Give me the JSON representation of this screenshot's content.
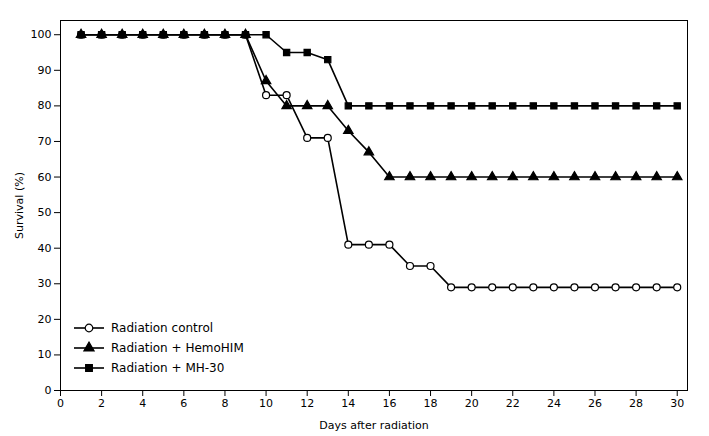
{
  "chart_data": {
    "type": "line",
    "xlabel": "Days after radiation",
    "ylabel": "Survival (%)",
    "x": [
      1,
      2,
      3,
      4,
      5,
      6,
      7,
      8,
      9,
      10,
      11,
      12,
      13,
      14,
      15,
      16,
      17,
      18,
      19,
      20,
      21,
      22,
      23,
      24,
      25,
      26,
      27,
      28,
      29,
      30
    ],
    "series": [
      {
        "name": "Radiation control",
        "color": "black",
        "marker": "open-circle",
        "values": [
          100,
          100,
          100,
          100,
          100,
          100,
          100,
          100,
          100,
          83,
          83,
          71,
          71,
          41,
          41,
          41,
          35,
          35,
          29,
          29,
          29,
          29,
          29,
          29,
          29,
          29,
          29,
          29,
          29,
          29
        ]
      },
      {
        "name": "Radiation + HemoHIM",
        "color": "black",
        "marker": "triangle",
        "values": [
          100,
          100,
          100,
          100,
          100,
          100,
          100,
          100,
          100,
          87,
          80,
          80,
          80,
          73,
          67,
          60,
          60,
          60,
          60,
          60,
          60,
          60,
          60,
          60,
          60,
          60,
          60,
          60,
          60,
          60
        ]
      },
      {
        "name": "Radiation + MH-30",
        "color": "black",
        "marker": "square",
        "values": [
          100,
          100,
          100,
          100,
          100,
          100,
          100,
          100,
          100,
          100,
          95,
          95,
          93,
          80,
          80,
          80,
          80,
          80,
          80,
          80,
          80,
          80,
          80,
          80,
          80,
          80,
          80,
          80,
          80,
          80
        ]
      }
    ],
    "xlim": [
      0,
      30.5
    ],
    "ylim": [
      0,
      104
    ],
    "xticks": [
      0,
      2,
      4,
      6,
      8,
      10,
      12,
      14,
      16,
      18,
      20,
      22,
      24,
      26,
      28,
      30
    ],
    "yticks": [
      0,
      10,
      20,
      30,
      40,
      50,
      60,
      70,
      80,
      90,
      100
    ],
    "grid": false,
    "legend": "lower left"
  }
}
